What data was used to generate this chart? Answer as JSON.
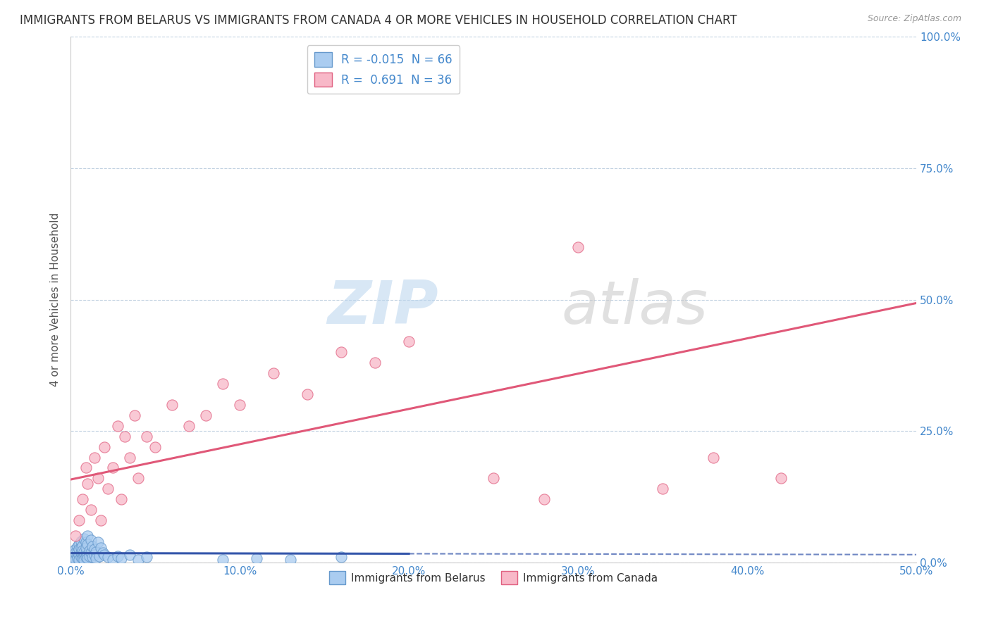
{
  "title": "IMMIGRANTS FROM BELARUS VS IMMIGRANTS FROM CANADA 4 OR MORE VEHICLES IN HOUSEHOLD CORRELATION CHART",
  "source": "Source: ZipAtlas.com",
  "ylabel": "4 or more Vehicles in Household",
  "xlim": [
    0.0,
    0.5
  ],
  "ylim": [
    0.0,
    1.0
  ],
  "xticks": [
    0.0,
    0.1,
    0.2,
    0.3,
    0.4,
    0.5
  ],
  "xticklabels": [
    "0.0%",
    "10.0%",
    "20.0%",
    "30.0%",
    "40.0%",
    "50.0%"
  ],
  "yticks": [
    0.0,
    0.25,
    0.5,
    0.75,
    1.0
  ],
  "yticklabels": [
    "0.0%",
    "25.0%",
    "50.0%",
    "75.0%",
    "100.0%"
  ],
  "belarus_color": "#aaccf0",
  "canada_color": "#f8b8c8",
  "belarus_edge": "#6699cc",
  "canada_edge": "#e06080",
  "trend_belarus_color": "#3355aa",
  "trend_canada_color": "#e05878",
  "R_belarus": -0.015,
  "N_belarus": 66,
  "R_canada": 0.691,
  "N_canada": 36,
  "title_fontsize": 12,
  "axis_label_fontsize": 11,
  "tick_fontsize": 11,
  "legend_fontsize": 12,
  "watermark_zip": "ZIP",
  "watermark_atlas": "atlas",
  "background_color": "#ffffff",
  "grid_color": "#c0d0e0",
  "belarus_scatter": [
    [
      0.0005,
      0.008
    ],
    [
      0.001,
      0.012
    ],
    [
      0.001,
      0.005
    ],
    [
      0.001,
      0.018
    ],
    [
      0.002,
      0.01
    ],
    [
      0.002,
      0.003
    ],
    [
      0.002,
      0.022
    ],
    [
      0.002,
      0.015
    ],
    [
      0.003,
      0.008
    ],
    [
      0.003,
      0.025
    ],
    [
      0.003,
      0.005
    ],
    [
      0.003,
      0.018
    ],
    [
      0.004,
      0.012
    ],
    [
      0.004,
      0.03
    ],
    [
      0.004,
      0.008
    ],
    [
      0.004,
      0.02
    ],
    [
      0.005,
      0.015
    ],
    [
      0.005,
      0.035
    ],
    [
      0.005,
      0.005
    ],
    [
      0.005,
      0.025
    ],
    [
      0.006,
      0.01
    ],
    [
      0.006,
      0.04
    ],
    [
      0.006,
      0.018
    ],
    [
      0.006,
      0.028
    ],
    [
      0.007,
      0.015
    ],
    [
      0.007,
      0.008
    ],
    [
      0.007,
      0.032
    ],
    [
      0.007,
      0.022
    ],
    [
      0.008,
      0.012
    ],
    [
      0.008,
      0.045
    ],
    [
      0.008,
      0.005
    ],
    [
      0.008,
      0.02
    ],
    [
      0.009,
      0.018
    ],
    [
      0.009,
      0.038
    ],
    [
      0.009,
      0.01
    ],
    [
      0.009,
      0.028
    ],
    [
      0.01,
      0.015
    ],
    [
      0.01,
      0.05
    ],
    [
      0.01,
      0.008
    ],
    [
      0.01,
      0.035
    ],
    [
      0.011,
      0.022
    ],
    [
      0.011,
      0.012
    ],
    [
      0.012,
      0.018
    ],
    [
      0.012,
      0.042
    ],
    [
      0.013,
      0.01
    ],
    [
      0.013,
      0.03
    ],
    [
      0.014,
      0.025
    ],
    [
      0.014,
      0.015
    ],
    [
      0.015,
      0.02
    ],
    [
      0.015,
      0.008
    ],
    [
      0.016,
      0.038
    ],
    [
      0.017,
      0.012
    ],
    [
      0.018,
      0.028
    ],
    [
      0.019,
      0.018
    ],
    [
      0.02,
      0.015
    ],
    [
      0.022,
      0.01
    ],
    [
      0.025,
      0.005
    ],
    [
      0.028,
      0.012
    ],
    [
      0.03,
      0.008
    ],
    [
      0.035,
      0.015
    ],
    [
      0.04,
      0.005
    ],
    [
      0.045,
      0.01
    ],
    [
      0.09,
      0.005
    ],
    [
      0.11,
      0.008
    ],
    [
      0.13,
      0.005
    ],
    [
      0.16,
      0.01
    ]
  ],
  "canada_scatter": [
    [
      0.003,
      0.05
    ],
    [
      0.005,
      0.08
    ],
    [
      0.007,
      0.12
    ],
    [
      0.009,
      0.18
    ],
    [
      0.01,
      0.15
    ],
    [
      0.012,
      0.1
    ],
    [
      0.014,
      0.2
    ],
    [
      0.016,
      0.16
    ],
    [
      0.018,
      0.08
    ],
    [
      0.02,
      0.22
    ],
    [
      0.022,
      0.14
    ],
    [
      0.025,
      0.18
    ],
    [
      0.028,
      0.26
    ],
    [
      0.03,
      0.12
    ],
    [
      0.032,
      0.24
    ],
    [
      0.035,
      0.2
    ],
    [
      0.038,
      0.28
    ],
    [
      0.04,
      0.16
    ],
    [
      0.045,
      0.24
    ],
    [
      0.05,
      0.22
    ],
    [
      0.06,
      0.3
    ],
    [
      0.07,
      0.26
    ],
    [
      0.08,
      0.28
    ],
    [
      0.09,
      0.34
    ],
    [
      0.1,
      0.3
    ],
    [
      0.12,
      0.36
    ],
    [
      0.14,
      0.32
    ],
    [
      0.16,
      0.4
    ],
    [
      0.18,
      0.38
    ],
    [
      0.2,
      0.42
    ],
    [
      0.25,
      0.16
    ],
    [
      0.28,
      0.12
    ],
    [
      0.3,
      0.6
    ],
    [
      0.35,
      0.14
    ],
    [
      0.38,
      0.2
    ],
    [
      0.42,
      0.16
    ]
  ],
  "trend_belarus_xmax": 0.2
}
